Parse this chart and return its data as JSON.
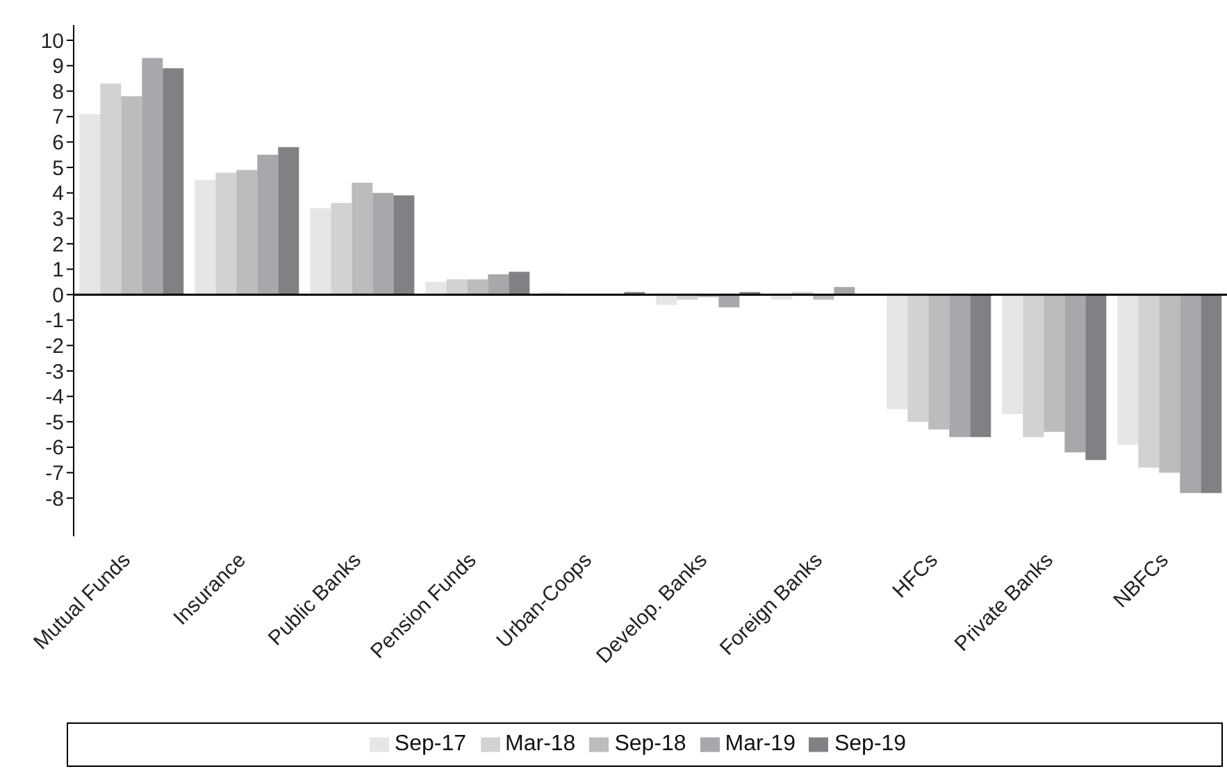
{
  "chart_data": {
    "type": "bar",
    "categories": [
      "Mutual Funds",
      "Insurance",
      "Public Banks",
      "Pension Funds",
      "Urban-Coops",
      "Develop. Banks",
      "Foreign Banks",
      "HFCs",
      "Private Banks",
      "NBFCs"
    ],
    "series": [
      {
        "name": "Sep-17",
        "color": "#e5e6e8",
        "values": [
          7.1,
          4.5,
          3.4,
          0.5,
          0.1,
          -0.4,
          -0.2,
          -4.5,
          -4.7,
          -5.9
        ]
      },
      {
        "name": "Mar-18",
        "color": "#d1d2d4",
        "values": [
          8.3,
          4.8,
          3.6,
          0.6,
          0.0,
          -0.2,
          0.1,
          -5.0,
          -5.6,
          -6.8
        ]
      },
      {
        "name": "Sep-18",
        "color": "#bbbcbe",
        "values": [
          7.8,
          4.9,
          4.4,
          0.6,
          0.0,
          -0.1,
          -0.2,
          -5.3,
          -5.4,
          -7.0
        ]
      },
      {
        "name": "Mar-19",
        "color": "#a7a8ab",
        "values": [
          9.3,
          5.5,
          4.0,
          0.8,
          0.0,
          -0.5,
          0.3,
          -5.6,
          -6.2,
          -7.8
        ]
      },
      {
        "name": "Sep-19",
        "color": "#808184",
        "values": [
          8.9,
          5.8,
          3.9,
          0.9,
          0.1,
          0.1,
          0.0,
          -5.6,
          -6.5,
          -7.8
        ]
      }
    ],
    "ylim": [
      -9.5,
      10.6
    ],
    "yticks": [
      -8,
      -7,
      -6,
      -5,
      -4,
      -3,
      -2,
      -1,
      0,
      1,
      2,
      3,
      4,
      5,
      6,
      7,
      8,
      9,
      10
    ],
    "legend": "bottom"
  }
}
